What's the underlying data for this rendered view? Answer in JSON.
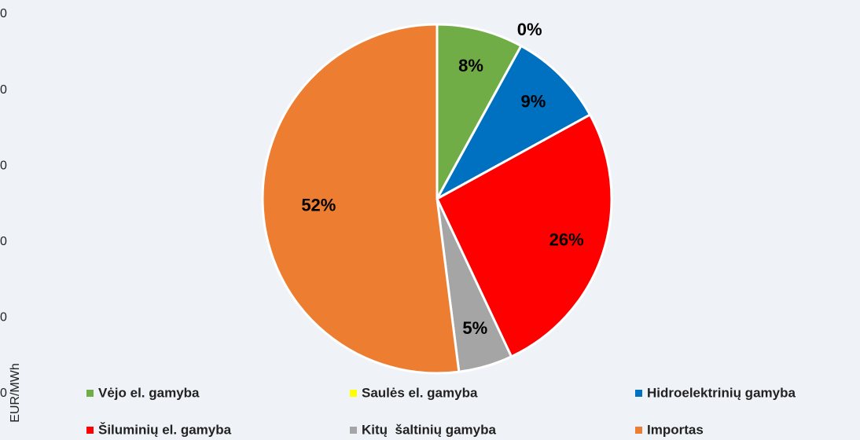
{
  "chart_data": {
    "type": "pie",
    "categories": [
      "Vėjo el. gamyba",
      "Saulės el. gamyba",
      "Hidroelektrinių gamyba",
      "Šiluminių el. gamyba",
      "Kitų  šaltinių gamyba",
      "Importas"
    ],
    "values": [
      8,
      0,
      9,
      26,
      5,
      52
    ],
    "value_labels": [
      "8%",
      "0%",
      "9%",
      "26%",
      "5%",
      "52%"
    ],
    "colors": [
      "#70ad47",
      "#ffff00",
      "#0070c0",
      "#ff0000",
      "#a5a5a5",
      "#ed7d31"
    ],
    "legend": "bottom"
  },
  "cropped_axis": {
    "tick_labels": [
      "0",
      "0",
      "0",
      "0",
      "0",
      "0"
    ],
    "title": "EUR/MWh"
  }
}
